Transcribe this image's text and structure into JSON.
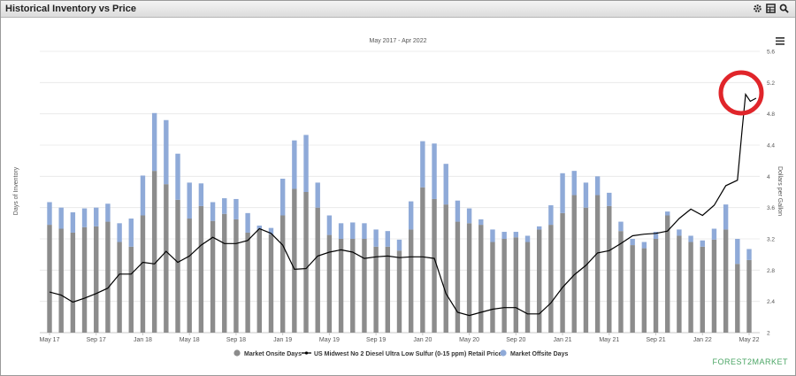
{
  "window": {
    "title": "Historical Inventory vs Price",
    "tools": [
      "gear-icon",
      "grid-icon",
      "search-icon"
    ]
  },
  "brand": "FOREST2MARKET",
  "chart_data": {
    "type": "bar",
    "subtitle": "May 2017 - Apr 2022",
    "ylabel_left": "Days of Inventory",
    "ylabel_right": "Dollars per Gallon",
    "y_right_ticks": [
      "2",
      "2.4",
      "2.8",
      "3.2",
      "3.6",
      "4",
      "4.4",
      "4.8",
      "5.2",
      "5.6"
    ],
    "y_right_range": [
      2,
      5.6
    ],
    "x_tick_labels": [
      "May 17",
      "Sep 17",
      "Jan 18",
      "May 18",
      "Sep 18",
      "Jan 19",
      "May 19",
      "Sep 19",
      "Jan 20",
      "May 20",
      "Sep 20",
      "Jan 21",
      "May 21",
      "Sep 21",
      "Jan 22",
      "May 22"
    ],
    "x_tick_bar_index": [
      0,
      4,
      8,
      12,
      16,
      20,
      24,
      28,
      32,
      36,
      40,
      44,
      48,
      52,
      56,
      60
    ],
    "grid": true,
    "legend_position": "bottom",
    "stacked": true,
    "series": [
      {
        "name": "Market Onsite Days",
        "color": "#8c8c8c",
        "values": [
          3.38,
          3.33,
          3.28,
          3.35,
          3.36,
          3.42,
          3.16,
          3.1,
          3.5,
          4.07,
          3.9,
          3.7,
          3.46,
          3.62,
          3.43,
          3.52,
          3.45,
          3.28,
          3.32,
          3.26,
          3.5,
          3.84,
          3.8,
          3.6,
          3.25,
          3.2,
          3.2,
          3.2,
          3.1,
          3.1,
          3.05,
          3.32,
          3.86,
          3.71,
          3.64,
          3.42,
          3.4,
          3.38,
          3.16,
          3.2,
          3.22,
          3.16,
          3.32,
          3.38,
          3.53,
          3.76,
          3.6,
          3.76,
          3.62,
          3.3,
          3.12,
          3.08,
          3.2,
          3.5,
          3.24,
          3.16,
          3.1,
          3.19,
          3.32,
          2.88,
          2.93
        ]
      },
      {
        "name": "Market Offsite Days",
        "color": "#8faad8",
        "values": [
          0.29,
          0.27,
          0.26,
          0.24,
          0.24,
          0.23,
          0.24,
          0.36,
          0.51,
          0.74,
          0.82,
          0.59,
          0.46,
          0.29,
          0.24,
          0.2,
          0.26,
          0.25,
          0.05,
          0.08,
          0.47,
          0.62,
          0.73,
          0.32,
          0.25,
          0.2,
          0.21,
          0.2,
          0.22,
          0.2,
          0.14,
          0.36,
          0.59,
          0.71,
          0.52,
          0.27,
          0.19,
          0.07,
          0.16,
          0.09,
          0.07,
          0.08,
          0.04,
          0.25,
          0.51,
          0.31,
          0.32,
          0.24,
          0.17,
          0.12,
          0.08,
          0.08,
          0.09,
          0.05,
          0.08,
          0.08,
          0.08,
          0.14,
          0.32,
          0.32,
          0.14
        ]
      },
      {
        "name": "US Midwest No 2 Diesel Ultra Low Sulfur (0-15 ppm) Retail Prices",
        "type": "line",
        "color": "#000000",
        "axis": "right",
        "x": [
          0,
          1,
          2,
          3,
          4,
          5,
          6,
          7,
          8,
          9,
          10,
          11,
          12,
          13,
          14,
          15,
          16,
          17,
          18,
          19,
          20,
          21,
          22,
          23,
          24,
          25,
          26,
          27,
          28,
          29,
          30,
          31,
          32,
          33,
          34,
          35,
          36,
          37,
          38,
          39,
          40,
          41,
          42,
          43,
          44,
          45,
          46,
          47,
          48,
          49,
          50,
          51,
          52,
          53,
          54,
          55,
          56,
          57,
          58,
          59,
          59.4,
          59.7,
          60.1,
          60.6
        ],
        "values": [
          2.52,
          2.48,
          2.39,
          2.44,
          2.5,
          2.57,
          2.75,
          2.75,
          2.9,
          2.88,
          3.04,
          2.9,
          2.98,
          3.12,
          3.22,
          3.14,
          3.14,
          3.18,
          3.33,
          3.27,
          3.12,
          2.81,
          2.82,
          2.98,
          3.03,
          3.06,
          3.03,
          2.95,
          2.97,
          2.98,
          2.96,
          2.97,
          2.97,
          2.95,
          2.5,
          2.26,
          2.22,
          2.26,
          2.3,
          2.32,
          2.32,
          2.24,
          2.24,
          2.38,
          2.58,
          2.74,
          2.86,
          3.02,
          3.05,
          3.14,
          3.24,
          3.26,
          3.27,
          3.3,
          3.46,
          3.58,
          3.5,
          3.63,
          3.88,
          3.95,
          4.6,
          5.05,
          4.96,
          5.0
        ]
      }
    ],
    "annotation": {
      "type": "red-circle",
      "target": "price peak Mar 22"
    }
  }
}
